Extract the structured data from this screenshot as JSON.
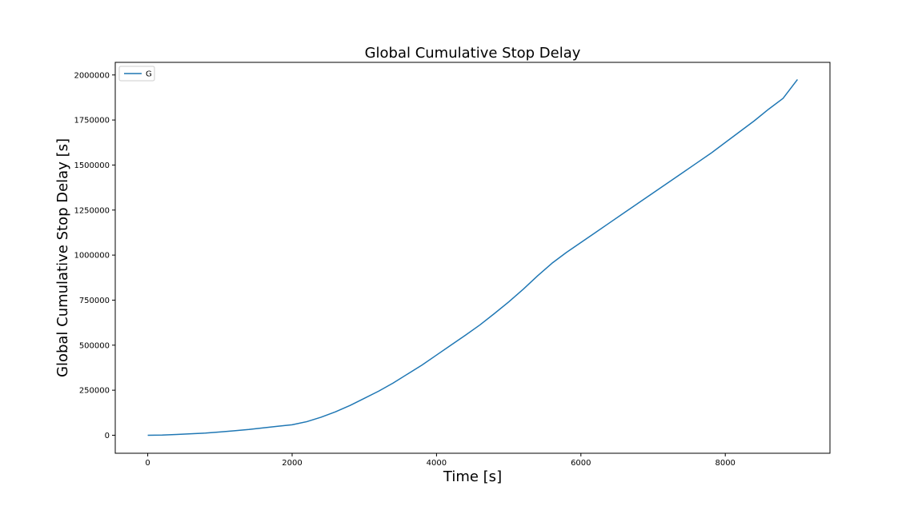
{
  "chart_data": {
    "type": "line",
    "title": "Global Cumulative Stop Delay",
    "xlabel": "Time [s]",
    "ylabel": "Global Cumulative Stop Delay [s]",
    "xlim": [
      -450,
      9450
    ],
    "ylim": [
      -100000,
      2070000
    ],
    "xticks": [
      0,
      2000,
      4000,
      6000,
      8000
    ],
    "yticks": [
      0,
      250000,
      500000,
      750000,
      1000000,
      1250000,
      1500000,
      1750000,
      2000000
    ],
    "xtick_labels": [
      "0",
      "2000",
      "4000",
      "6000",
      "8000"
    ],
    "ytick_labels": [
      "0",
      "250000",
      "500000",
      "750000",
      "1000000",
      "1250000",
      "1500000",
      "1750000",
      "2000000"
    ],
    "legend": {
      "position": "top-left",
      "frame": true
    },
    "grid": false,
    "series": [
      {
        "name": "G",
        "color": "#1f77b4",
        "x": [
          0,
          200,
          400,
          600,
          800,
          1000,
          1200,
          1400,
          1600,
          1800,
          2000,
          2200,
          2400,
          2600,
          2800,
          3000,
          3200,
          3400,
          3600,
          3800,
          4000,
          4200,
          4400,
          4600,
          4800,
          5000,
          5200,
          5400,
          5600,
          5800,
          6000,
          6200,
          6400,
          6600,
          6800,
          7000,
          7200,
          7400,
          7600,
          7800,
          8000,
          8200,
          8400,
          8600,
          8800,
          9000
        ],
        "y": [
          0,
          1000,
          4000,
          8000,
          12000,
          18000,
          25000,
          32000,
          41000,
          50000,
          58000,
          75000,
          100000,
          130000,
          165000,
          205000,
          245000,
          290000,
          340000,
          390000,
          445000,
          500000,
          555000,
          612000,
          675000,
          740000,
          810000,
          885000,
          955000,
          1015000,
          1070000,
          1125000,
          1180000,
          1235000,
          1290000,
          1345000,
          1400000,
          1455000,
          1510000,
          1565000,
          1625000,
          1685000,
          1745000,
          1810000,
          1870000,
          1975000
        ]
      }
    ]
  }
}
